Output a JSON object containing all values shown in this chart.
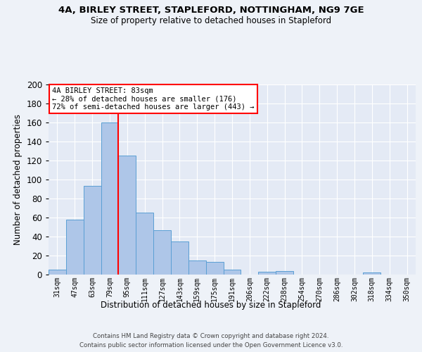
{
  "title_line1": "4A, BIRLEY STREET, STAPLEFORD, NOTTINGHAM, NG9 7GE",
  "title_line2": "Size of property relative to detached houses in Stapleford",
  "xlabel": "Distribution of detached houses by size in Stapleford",
  "ylabel": "Number of detached properties",
  "categories": [
    "31sqm",
    "47sqm",
    "63sqm",
    "79sqm",
    "95sqm",
    "111sqm",
    "127sqm",
    "143sqm",
    "159sqm",
    "175sqm",
    "191sqm",
    "206sqm",
    "222sqm",
    "238sqm",
    "254sqm",
    "270sqm",
    "286sqm",
    "302sqm",
    "318sqm",
    "334sqm",
    "350sqm"
  ],
  "values": [
    5,
    58,
    93,
    160,
    125,
    65,
    47,
    35,
    15,
    13,
    5,
    0,
    3,
    4,
    0,
    0,
    0,
    0,
    2,
    0,
    0
  ],
  "bar_color": "#aec6e8",
  "bar_edge_color": "#5a9fd4",
  "red_line_x": 3.5,
  "ylim": [
    0,
    200
  ],
  "yticks": [
    0,
    20,
    40,
    60,
    80,
    100,
    120,
    140,
    160,
    180,
    200
  ],
  "annotation_title": "4A BIRLEY STREET: 83sqm",
  "annotation_line1": "← 28% of detached houses are smaller (176)",
  "annotation_line2": "72% of semi-detached houses are larger (443) →",
  "footer_line1": "Contains HM Land Registry data © Crown copyright and database right 2024.",
  "footer_line2": "Contains public sector information licensed under the Open Government Licence v3.0.",
  "bg_color": "#eef2f8",
  "plot_bg_color": "#e4eaf5"
}
